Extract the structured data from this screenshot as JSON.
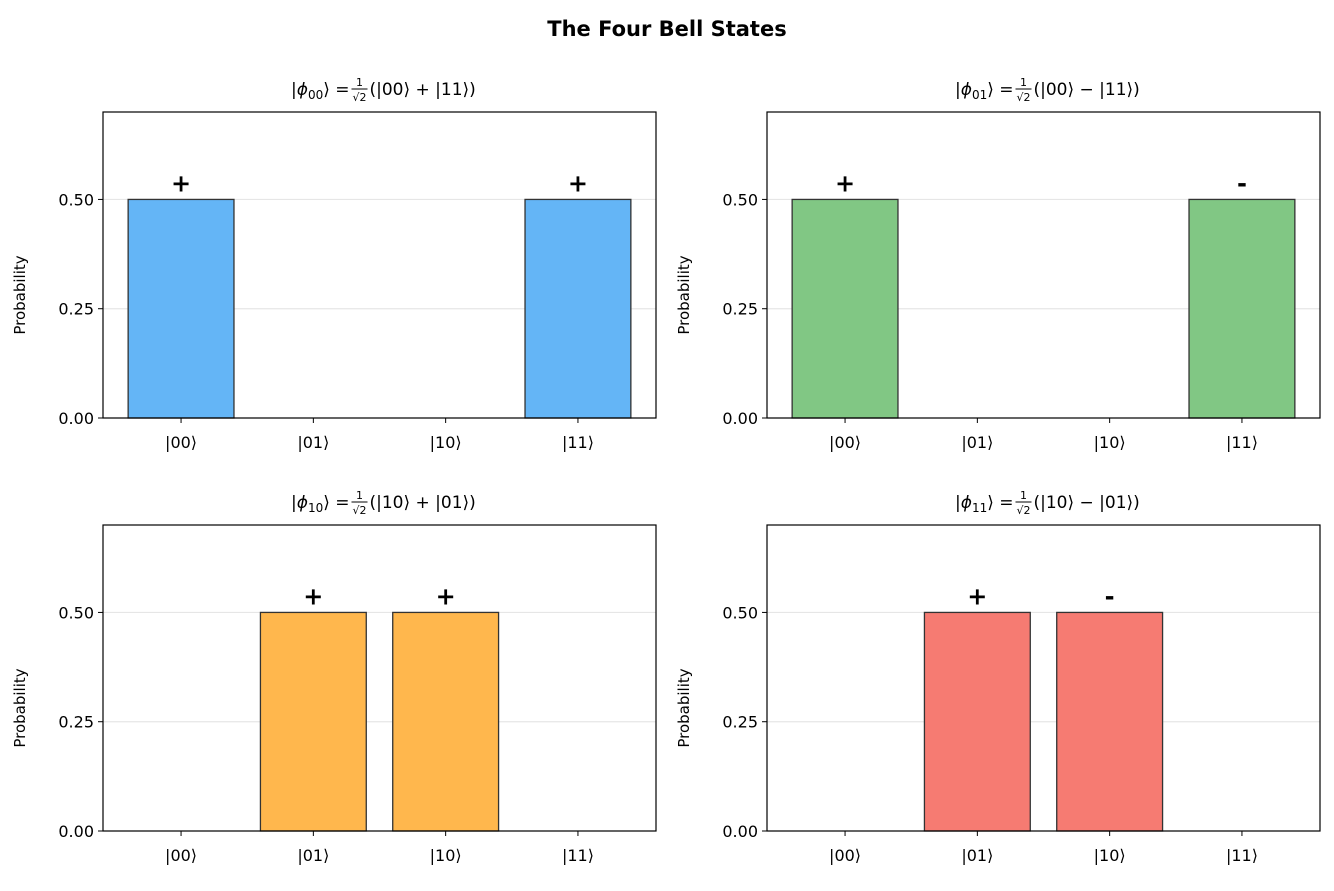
{
  "chart_data": {
    "title": "The Four Bell States",
    "colors": [
      "#64B5F6",
      "#81C784",
      "#FFB74D",
      "#F67B72"
    ],
    "edge_color": "#333333",
    "subplots": [
      {
        "type": "bar",
        "title": {
          "symbol": "ϕ",
          "sub": "00",
          "num": "1",
          "den": "√2",
          "expr": "(|00⟩ + |11⟩)"
        },
        "categories": [
          "|00⟩",
          "|01⟩",
          "|10⟩",
          "|11⟩"
        ],
        "values": [
          0.5,
          0,
          0,
          0.5
        ],
        "signs": [
          "+",
          "",
          "",
          "+"
        ],
        "ylabel": "Probability",
        "ylim": [
          0,
          0.7
        ],
        "yticks": [
          "0.00",
          "0.25",
          "0.50"
        ],
        "grid": "y"
      },
      {
        "type": "bar",
        "title": {
          "symbol": "ϕ",
          "sub": "01",
          "num": "1",
          "den": "√2",
          "expr": "(|00⟩ − |11⟩)"
        },
        "categories": [
          "|00⟩",
          "|01⟩",
          "|10⟩",
          "|11⟩"
        ],
        "values": [
          0.5,
          0,
          0,
          0.5
        ],
        "signs": [
          "+",
          "",
          "",
          "-"
        ],
        "ylabel": "Probability",
        "ylim": [
          0,
          0.7
        ],
        "yticks": [
          "0.00",
          "0.25",
          "0.50"
        ],
        "grid": "y"
      },
      {
        "type": "bar",
        "title": {
          "symbol": "ϕ",
          "sub": "10",
          "num": "1",
          "den": "√2",
          "expr": "(|10⟩ + |01⟩)"
        },
        "categories": [
          "|00⟩",
          "|01⟩",
          "|10⟩",
          "|11⟩"
        ],
        "values": [
          0,
          0.5,
          0.5,
          0
        ],
        "signs": [
          "",
          "+",
          "+",
          ""
        ],
        "ylabel": "Probability",
        "ylim": [
          0,
          0.7
        ],
        "yticks": [
          "0.00",
          "0.25",
          "0.50"
        ],
        "grid": "y"
      },
      {
        "type": "bar",
        "title": {
          "symbol": "ϕ",
          "sub": "11",
          "num": "1",
          "den": "√2",
          "expr": "(|10⟩ − |01⟩)"
        },
        "categories": [
          "|00⟩",
          "|01⟩",
          "|10⟩",
          "|11⟩"
        ],
        "values": [
          0,
          0.5,
          0.5,
          0
        ],
        "signs": [
          "",
          "+",
          "-",
          ""
        ],
        "ylabel": "Probability",
        "ylim": [
          0,
          0.7
        ],
        "yticks": [
          "0.00",
          "0.25",
          "0.50"
        ],
        "grid": "y"
      }
    ]
  }
}
